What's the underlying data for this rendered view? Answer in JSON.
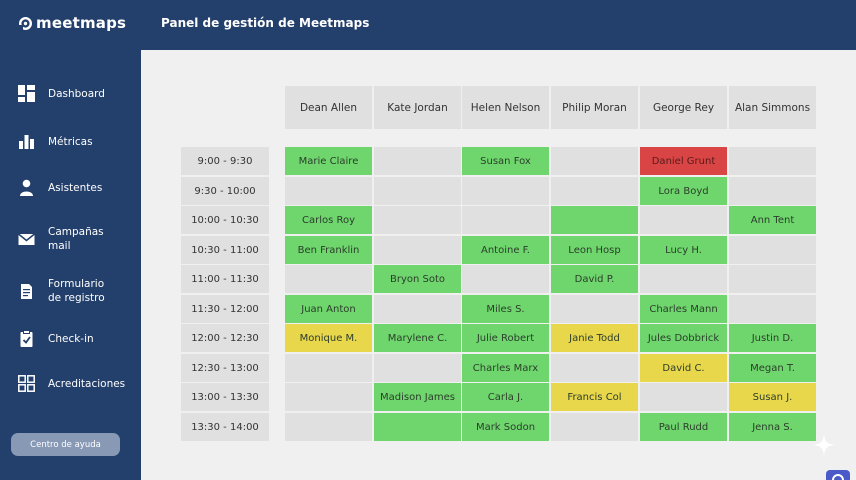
{
  "app": {
    "logo_text": "meetmaps",
    "panel_title": "Panel de gestión de Meetmaps"
  },
  "colors": {
    "header": "#233f6b",
    "sidebar": "#233f6b",
    "slot_free": "#e0e0e0",
    "slot_confirmed": "#6ed66c",
    "slot_pending": "#e8d64b",
    "slot_conflict": "#d94545"
  },
  "sidebar": {
    "items": [
      {
        "label": "Dashboard",
        "icon": "dashboard-icon"
      },
      {
        "label": "Métricas",
        "icon": "bar-chart-icon"
      },
      {
        "label": "Asistentes",
        "icon": "person-icon"
      },
      {
        "label": "Campañas\nmail",
        "icon": "mail-icon"
      },
      {
        "label": "Formulario\nde registro",
        "icon": "form-icon"
      },
      {
        "label": "Check-in",
        "icon": "clipboard-check-icon"
      },
      {
        "label": "Acreditaciones",
        "icon": "grid-icon"
      }
    ],
    "help_label": "Centro de ayuda"
  },
  "schedule": {
    "columns": [
      "Dean Allen",
      "Kate Jordan",
      "Helen Nelson",
      "Philip Moran",
      "George Rey",
      "Alan Simmons"
    ],
    "times": [
      "9:00 - 9:30",
      "9:30 - 10:00",
      "10:00 - 10:30",
      "10:30 - 11:00",
      "11:00 - 11:30",
      "11:30 - 12:00",
      "12:00 - 12:30",
      "12:30 - 13:00",
      "13:00 - 13:30",
      "13:30 - 14:00"
    ],
    "rows": [
      [
        {
          "n": "Marie Claire",
          "s": "green"
        },
        {
          "n": "",
          "s": "empty"
        },
        {
          "n": "Susan Fox",
          "s": "green"
        },
        {
          "n": "",
          "s": "empty"
        },
        {
          "n": "Daniel Grunt",
          "s": "red"
        },
        {
          "n": "",
          "s": "empty"
        }
      ],
      [
        {
          "n": "",
          "s": "empty"
        },
        {
          "n": "",
          "s": "empty"
        },
        {
          "n": "",
          "s": "empty"
        },
        {
          "n": "",
          "s": "empty"
        },
        {
          "n": "Lora Boyd",
          "s": "green"
        },
        {
          "n": "",
          "s": "empty"
        }
      ],
      [
        {
          "n": "Carlos Roy",
          "s": "green"
        },
        {
          "n": "",
          "s": "empty"
        },
        {
          "n": "",
          "s": "empty"
        },
        {
          "n": "",
          "s": "green"
        },
        {
          "n": "",
          "s": "empty"
        },
        {
          "n": "Ann Tent",
          "s": "green"
        }
      ],
      [
        {
          "n": "Ben Franklin",
          "s": "green"
        },
        {
          "n": "",
          "s": "empty"
        },
        {
          "n": "Antoine F.",
          "s": "green"
        },
        {
          "n": "Leon Hosp",
          "s": "green"
        },
        {
          "n": "Lucy H.",
          "s": "green"
        },
        {
          "n": "",
          "s": "empty"
        }
      ],
      [
        {
          "n": "",
          "s": "empty"
        },
        {
          "n": "Bryon Soto",
          "s": "green"
        },
        {
          "n": "",
          "s": "empty"
        },
        {
          "n": "David P.",
          "s": "green"
        },
        {
          "n": "",
          "s": "empty"
        },
        {
          "n": "",
          "s": "empty"
        }
      ],
      [
        {
          "n": "Juan Anton",
          "s": "green"
        },
        {
          "n": "",
          "s": "empty"
        },
        {
          "n": "Miles S.",
          "s": "green"
        },
        {
          "n": "",
          "s": "empty"
        },
        {
          "n": "Charles Mann",
          "s": "green"
        },
        {
          "n": "",
          "s": "empty"
        }
      ],
      [
        {
          "n": "Monique M.",
          "s": "yellow"
        },
        {
          "n": "Marylene C.",
          "s": "green"
        },
        {
          "n": "Julie Robert",
          "s": "green"
        },
        {
          "n": "Janie Todd",
          "s": "yellow"
        },
        {
          "n": "Jules Dobbrick",
          "s": "green"
        },
        {
          "n": "Justin D.",
          "s": "green"
        }
      ],
      [
        {
          "n": "",
          "s": "empty"
        },
        {
          "n": "",
          "s": "empty"
        },
        {
          "n": "Charles Marx",
          "s": "green"
        },
        {
          "n": "",
          "s": "empty"
        },
        {
          "n": "David C.",
          "s": "yellow"
        },
        {
          "n": "Megan T.",
          "s": "green"
        }
      ],
      [
        {
          "n": "",
          "s": "empty"
        },
        {
          "n": "Madison James",
          "s": "green"
        },
        {
          "n": "Carla J.",
          "s": "green"
        },
        {
          "n": "Francis Col",
          "s": "yellow"
        },
        {
          "n": "",
          "s": "empty"
        },
        {
          "n": "Susan J.",
          "s": "yellow"
        }
      ],
      [
        {
          "n": "",
          "s": "empty"
        },
        {
          "n": "",
          "s": "green"
        },
        {
          "n": "Mark Sodon",
          "s": "green"
        },
        {
          "n": "",
          "s": "empty"
        },
        {
          "n": "Paul Rudd",
          "s": "green"
        },
        {
          "n": "Jenna S.",
          "s": "green"
        }
      ]
    ]
  }
}
